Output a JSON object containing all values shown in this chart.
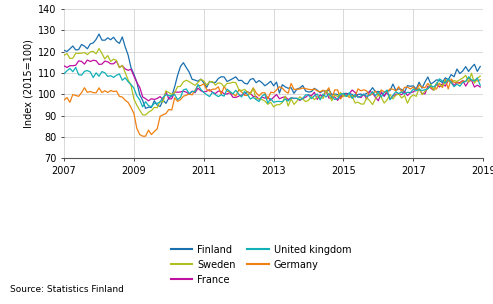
{
  "title": "",
  "ylabel": "Index (2015=100)",
  "xlabel": "",
  "ylim": [
    70,
    140
  ],
  "yticks": [
    70,
    80,
    90,
    100,
    110,
    120,
    130,
    140
  ],
  "xlim": [
    2007.0,
    2019.0
  ],
  "xticks": [
    2007,
    2009,
    2011,
    2013,
    2015,
    2017,
    2019
  ],
  "source_text": "Source: Statistics Finland",
  "colors": {
    "Finland": "#1a6faf",
    "Sweden": "#b0c020",
    "France": "#c010a0",
    "United kingdom": "#10b0b8",
    "Germany": "#f08010"
  },
  "linewidth": 0.9,
  "noise_scale": 1.2
}
